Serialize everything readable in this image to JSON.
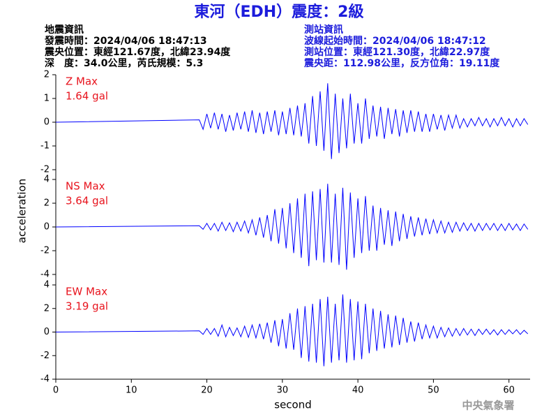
{
  "title": "東河（EDH）震度：2級",
  "event_info": [
    "地震資訊",
    "發震時間：2024/04/06 18:47:13",
    "震央位置：東經121.67度，北緯23.94度",
    "深　度：34.0公里，芮氏規模：5.3"
  ],
  "station_info": [
    "測站資訊",
    "波線起始時間：2024/04/06 18:47:12",
    "測站位置：東經121.30度，北緯22.97度",
    "震央距：112.98公里，反方位角：19.11度"
  ],
  "ylabel": "acceleration",
  "footer": "中央氣象署",
  "chart_data": [
    {
      "type": "line",
      "label": "Z Max",
      "max_label": "1.64 gal",
      "color": "#0000ff",
      "label_color": "#e8141e",
      "xlim": [
        0,
        62.8
      ],
      "ylim": [
        -2,
        2
      ],
      "yticks": [
        -2,
        -1,
        0,
        1,
        2
      ],
      "x": [
        0,
        19,
        19.5,
        20,
        20.5,
        21,
        21.5,
        22,
        22.5,
        23,
        23.5,
        24,
        24.5,
        25,
        25.5,
        26,
        26.5,
        27,
        27.5,
        28,
        28.5,
        29,
        29.5,
        30,
        30.5,
        31,
        31.5,
        32,
        32.5,
        33,
        33.5,
        34,
        34.5,
        35,
        35.5,
        36,
        36.5,
        37,
        37.5,
        38,
        38.5,
        39,
        39.5,
        40,
        40.5,
        41,
        41.5,
        42,
        42.5,
        43,
        43.5,
        44,
        44.5,
        45,
        45.5,
        46,
        46.5,
        47,
        47.5,
        48,
        48.5,
        49,
        49.5,
        50,
        50.5,
        51,
        51.5,
        52,
        52.5,
        53,
        53.5,
        54,
        54.5,
        55,
        55.5,
        56,
        56.5,
        57,
        57.5,
        58,
        58.5,
        59,
        59.5,
        60,
        60.5,
        61,
        61.5,
        62,
        62.5
      ],
      "values": [
        0,
        0.1,
        -0.3,
        0.35,
        -0.25,
        0.4,
        -0.3,
        0.35,
        -0.4,
        0.3,
        -0.35,
        0.4,
        -0.3,
        0.45,
        -0.4,
        0.5,
        -0.45,
        0.4,
        -0.5,
        0.45,
        -0.4,
        0.5,
        -0.55,
        0.45,
        -0.5,
        0.6,
        -0.55,
        0.7,
        -0.6,
        0.8,
        -0.9,
        1.1,
        -1.0,
        1.3,
        -1.2,
        1.64,
        -1.55,
        1.2,
        -1.3,
        1.0,
        -1.1,
        1.2,
        -0.9,
        0.8,
        -0.9,
        1.0,
        -0.7,
        0.7,
        -0.6,
        0.65,
        -0.7,
        0.6,
        -0.5,
        0.55,
        -0.6,
        0.5,
        -0.45,
        0.5,
        -0.4,
        0.45,
        -0.4,
        0.35,
        -0.4,
        0.35,
        -0.3,
        0.3,
        -0.35,
        0.3,
        -0.25,
        0.3,
        -0.25,
        0.15,
        -0.2,
        0.15,
        -0.15,
        0.2,
        -0.15,
        0.15,
        -0.2,
        0.15,
        -0.15,
        0.2,
        -0.15,
        0.15,
        -0.2,
        0.15,
        -0.15,
        0.15,
        -0.1
      ]
    },
    {
      "type": "line",
      "label": "NS Max",
      "max_label": "3.64 gal",
      "color": "#0000ff",
      "label_color": "#e8141e",
      "xlim": [
        0,
        62.8
      ],
      "ylim": [
        -4,
        4
      ],
      "yticks": [
        -4,
        -2,
        0,
        2,
        4
      ],
      "x": [
        0,
        19,
        19.5,
        20,
        20.5,
        21,
        21.5,
        22,
        22.5,
        23,
        23.5,
        24,
        24.5,
        25,
        25.5,
        26,
        26.5,
        27,
        27.5,
        28,
        28.5,
        29,
        29.5,
        30,
        30.5,
        31,
        31.5,
        32,
        32.5,
        33,
        33.5,
        34,
        34.5,
        35,
        35.5,
        36,
        36.5,
        37,
        37.5,
        38,
        38.5,
        39,
        39.5,
        40,
        40.5,
        41,
        41.5,
        42,
        42.5,
        43,
        43.5,
        44,
        44.5,
        45,
        45.5,
        46,
        46.5,
        47,
        47.5,
        48,
        48.5,
        49,
        49.5,
        50,
        50.5,
        51,
        51.5,
        52,
        52.5,
        53,
        53.5,
        54,
        54.5,
        55,
        55.5,
        56,
        56.5,
        57,
        57.5,
        58,
        58.5,
        59,
        59.5,
        60,
        60.5,
        61,
        61.5,
        62,
        62.5
      ],
      "values": [
        0,
        0.1,
        -0.2,
        0.3,
        -0.25,
        0.3,
        -0.35,
        0.4,
        -0.3,
        0.35,
        -0.4,
        0.4,
        -0.35,
        0.5,
        -0.5,
        0.6,
        -0.7,
        0.8,
        -0.9,
        1.0,
        -1.2,
        1.5,
        -1.4,
        1.6,
        -1.8,
        2.0,
        -2.2,
        2.4,
        -2.6,
        2.8,
        -3.3,
        3.0,
        -2.8,
        3.2,
        -3.0,
        3.64,
        -3.0,
        2.8,
        -3.2,
        3.3,
        -3.6,
        2.9,
        -2.6,
        2.4,
        -2.2,
        2.6,
        -2.0,
        1.8,
        -2.0,
        1.6,
        -1.5,
        1.4,
        -1.6,
        1.3,
        -1.2,
        1.1,
        -1.0,
        0.9,
        -0.8,
        0.8,
        -0.7,
        0.7,
        -0.6,
        0.6,
        -0.5,
        0.5,
        -0.5,
        0.4,
        -0.45,
        0.4,
        -0.35,
        0.35,
        -0.3,
        0.3,
        -0.35,
        0.3,
        -0.3,
        0.3,
        -0.25,
        0.3,
        -0.3,
        0.25,
        -0.3,
        0.3,
        -0.25,
        0.25,
        -0.3,
        0.25,
        -0.2
      ]
    },
    {
      "type": "line",
      "label": "EW Max",
      "max_label": "3.19 gal",
      "color": "#0000ff",
      "label_color": "#e8141e",
      "xlim": [
        0,
        62.8
      ],
      "ylim": [
        -4,
        4
      ],
      "yticks": [
        -4,
        -2,
        0,
        2,
        4
      ],
      "xticks": [
        0,
        10,
        20,
        30,
        40,
        50,
        60
      ],
      "xlabel": "second",
      "x": [
        0,
        19,
        19.5,
        20,
        20.5,
        21,
        21.5,
        22,
        22.5,
        23,
        23.5,
        24,
        24.5,
        25,
        25.5,
        26,
        26.5,
        27,
        27.5,
        28,
        28.5,
        29,
        29.5,
        30,
        30.5,
        31,
        31.5,
        32,
        32.5,
        33,
        33.5,
        34,
        34.5,
        35,
        35.5,
        36,
        36.5,
        37,
        37.5,
        38,
        38.5,
        39,
        39.5,
        40,
        40.5,
        41,
        41.5,
        42,
        42.5,
        43,
        43.5,
        44,
        44.5,
        45,
        45.5,
        46,
        46.5,
        47,
        47.5,
        48,
        48.5,
        49,
        49.5,
        50,
        50.5,
        51,
        51.5,
        52,
        52.5,
        53,
        53.5,
        54,
        54.5,
        55,
        55.5,
        56,
        56.5,
        57,
        57.5,
        58,
        58.5,
        59,
        59.5,
        60,
        60.5,
        61,
        61.5,
        62,
        62.5
      ],
      "values": [
        0,
        0.1,
        -0.2,
        0.3,
        -0.2,
        0.3,
        -0.35,
        0.6,
        -0.4,
        0.4,
        -0.3,
        0.35,
        -0.4,
        0.5,
        -0.45,
        0.6,
        -0.5,
        0.7,
        -0.6,
        0.8,
        -0.9,
        1.0,
        -1.2,
        1.1,
        -1.4,
        1.6,
        -1.5,
        2.0,
        -2.2,
        2.2,
        -2.5,
        2.4,
        -2.6,
        2.8,
        -2.9,
        3.0,
        -2.6,
        2.4,
        -2.4,
        3.19,
        -2.6,
        2.8,
        -2.4,
        2.6,
        -2.3,
        2.4,
        -1.8,
        2.0,
        -1.6,
        1.8,
        -1.4,
        1.5,
        -1.3,
        1.4,
        -1.1,
        1.2,
        -0.9,
        0.9,
        -0.8,
        0.8,
        -0.6,
        0.6,
        -0.5,
        0.5,
        -0.5,
        0.4,
        -0.4,
        0.35,
        -0.35,
        0.3,
        -0.3,
        0.3,
        -0.25,
        0.25,
        -0.3,
        0.25,
        -0.2,
        0.25,
        -0.2,
        0.2,
        -0.25,
        0.2,
        -0.2,
        0.2,
        -0.15,
        0.2,
        -0.2,
        0.15,
        -0.15
      ]
    }
  ]
}
